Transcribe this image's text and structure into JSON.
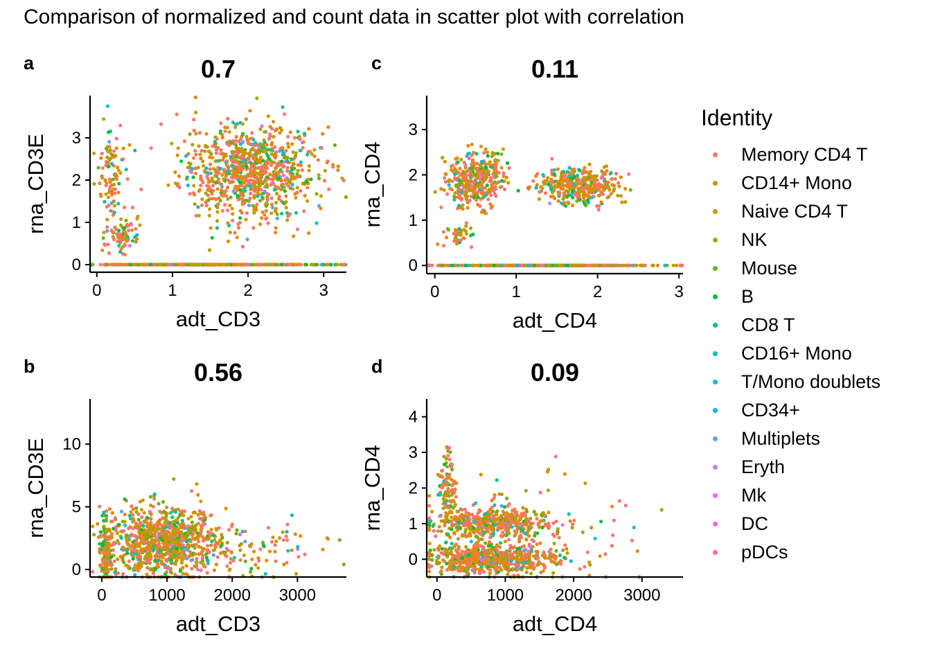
{
  "title": "Comparison of normalized and count data in scatter plot with correlation",
  "legend": {
    "title": "Identity",
    "items": [
      {
        "label": "Memory CD4 T",
        "color": "#F8766D"
      },
      {
        "label": "CD14+ Mono",
        "color": "#E58700"
      },
      {
        "label": "Naive CD4 T",
        "color": "#C99800"
      },
      {
        "label": "NK",
        "color": "#A3A500"
      },
      {
        "label": "Mouse",
        "color": "#6BB100"
      },
      {
        "label": "B",
        "color": "#00BA38"
      },
      {
        "label": "CD8 T",
        "color": "#00BF7D"
      },
      {
        "label": "CD16+ Mono",
        "color": "#00C0AF"
      },
      {
        "label": "T/Mono doublets",
        "color": "#00BCD8"
      },
      {
        "label": "CD34+",
        "color": "#00B0F6"
      },
      {
        "label": "Multiplets",
        "color": "#619CFF"
      },
      {
        "label": "Eryth",
        "color": "#B983FF"
      },
      {
        "label": "Mk",
        "color": "#E76BF3"
      },
      {
        "label": "DC",
        "color": "#FD61D1"
      },
      {
        "label": "pDCs",
        "color": "#FF67A4"
      }
    ]
  },
  "chart_data": [
    {
      "type": "scatter",
      "panel": "a",
      "title": "0.7",
      "xlabel": "adt_CD3",
      "ylabel": "rna_CD3E",
      "xlim": [
        -0.09,
        3.3
      ],
      "ylim": [
        -0.18,
        4.0
      ],
      "xticks": [
        0,
        1,
        2,
        3
      ],
      "yticks": [
        0,
        1,
        2,
        3
      ],
      "clusters": [
        {
          "cx": 2.0,
          "cy": 2.2,
          "sx": 0.45,
          "sy": 0.55,
          "n": 900
        },
        {
          "cx": 0.2,
          "cy": 2.1,
          "sx": 0.1,
          "sy": 0.6,
          "n": 90
        },
        {
          "cx": 0.35,
          "cy": 0.75,
          "sx": 0.1,
          "sy": 0.2,
          "n": 80
        },
        {
          "cx": 1.5,
          "cy": 0,
          "sx": 0.75,
          "sy": 0,
          "n": 450
        }
      ]
    },
    {
      "type": "scatter",
      "panel": "b",
      "title": "0.56",
      "xlabel": "adt_CD3",
      "ylabel": "rna_CD3E",
      "xlim": [
        -180,
        3750
      ],
      "ylim": [
        -0.6,
        13.6
      ],
      "xticks": [
        0,
        1000,
        2000,
        3000
      ],
      "yticks": [
        0,
        5,
        10
      ],
      "clusters": [
        {
          "cx": 950,
          "cy": 2.2,
          "sx": 420,
          "sy": 1.4,
          "n": 900
        },
        {
          "cx": 60,
          "cy": 1.2,
          "sx": 40,
          "sy": 1.2,
          "n": 150
        },
        {
          "cx": 2400,
          "cy": 1.5,
          "sx": 500,
          "sy": 1.2,
          "n": 90
        }
      ]
    },
    {
      "type": "scatter",
      "panel": "c",
      "title": "0.11",
      "xlabel": "adt_CD4",
      "ylabel": "rna_CD4",
      "xlim": [
        -0.1,
        3.05
      ],
      "ylim": [
        -0.18,
        3.75
      ],
      "xticks": [
        0,
        1,
        2,
        3
      ],
      "yticks": [
        0,
        1,
        2,
        3
      ],
      "clusters": [
        {
          "cx": 0.5,
          "cy": 1.9,
          "sx": 0.18,
          "sy": 0.3,
          "n": 380
        },
        {
          "cx": 1.75,
          "cy": 1.75,
          "sx": 0.25,
          "sy": 0.2,
          "n": 360
        },
        {
          "cx": 0.3,
          "cy": 0.65,
          "sx": 0.08,
          "sy": 0.12,
          "n": 45
        },
        {
          "cx": 1.3,
          "cy": 0,
          "sx": 0.7,
          "sy": 0,
          "n": 450
        }
      ]
    },
    {
      "type": "scatter",
      "panel": "d",
      "title": "0.09",
      "xlabel": "adt_CD4",
      "ylabel": "rna_CD4",
      "xlim": [
        -150,
        3600
      ],
      "ylim": [
        -0.5,
        4.5
      ],
      "xticks": [
        0,
        1000,
        2000,
        3000
      ],
      "yticks": [
        0,
        1,
        2,
        3,
        4
      ],
      "clusters": [
        {
          "cx": 800,
          "cy": 0,
          "sx": 450,
          "sy": 0.2,
          "n": 700
        },
        {
          "cx": 800,
          "cy": 1.0,
          "sx": 420,
          "sy": 0.2,
          "n": 450
        },
        {
          "cx": 150,
          "cy": 2.0,
          "sx": 60,
          "sy": 0.6,
          "n": 110
        },
        {
          "cx": 1600,
          "cy": 0.8,
          "sx": 700,
          "sy": 0.9,
          "n": 90
        }
      ]
    }
  ]
}
